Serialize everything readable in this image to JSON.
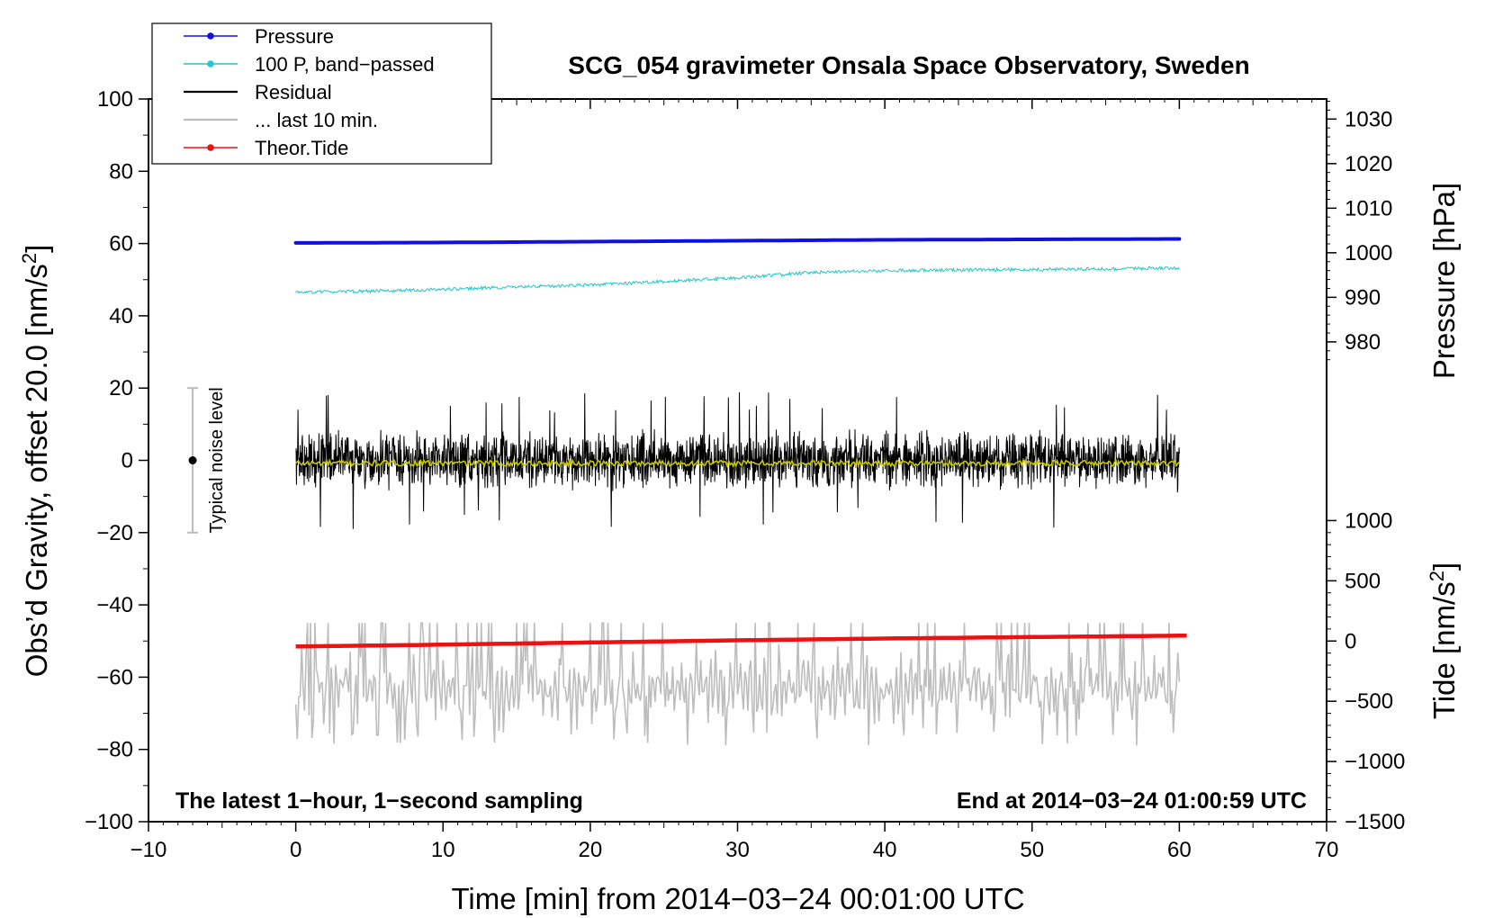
{
  "chart_data": {
    "type": "line",
    "title": "SCG_054 gravimeter Onsala Space Observatory, Sweden",
    "xlabel": "Time [min] from 2014−03−24 00:01:00 UTC",
    "ylabel_left": "Obs’d Gravity, offset 20.0 [nm/s²]",
    "ylabel_left_parts": {
      "main": "Obs’d Gravity, offset 20.0 [nm/s",
      "sup": "2",
      "end": "]"
    },
    "ylabel_pressure": "Pressure [hPa]",
    "ylabel_tide": "Tide [nm/s²]",
    "ylabel_tide_parts": {
      "main": "Tide [nm/s",
      "sup": "2",
      "end": "]"
    },
    "xlim": [
      -10,
      70
    ],
    "ylim": [
      -100,
      100
    ],
    "x_ticks": [
      -10,
      0,
      10,
      20,
      30,
      40,
      50,
      60,
      70
    ],
    "x_tick_labels": [
      "−10",
      "0",
      "10",
      "20",
      "30",
      "40",
      "50",
      "60",
      "70"
    ],
    "y_ticks": [
      -100,
      -80,
      -60,
      -40,
      -20,
      0,
      20,
      40,
      60,
      80,
      100
    ],
    "y_tick_labels": [
      "−100",
      "−80",
      "−60",
      "−40",
      "−20",
      "0",
      "20",
      "40",
      "60",
      "80",
      "100"
    ],
    "pressure_axis": {
      "ticks": [
        980,
        990,
        1000,
        1010,
        1020,
        1030
      ],
      "tick_labels": [
        "980",
        "990",
        "1000",
        "1010",
        "1020",
        "1030"
      ],
      "range_hPa": [
        974.5,
        1034.5
      ],
      "maps_to_left_y": [
        26,
        100
      ]
    },
    "tide_axis": {
      "ticks": [
        -1500,
        -1000,
        -500,
        0,
        500,
        1000
      ],
      "tick_labels": [
        "−1500",
        "−1000",
        "−500",
        "0",
        "500",
        "1000"
      ],
      "range": [
        -1500,
        1500
      ],
      "maps_to_left_y": [
        -100,
        0
      ]
    },
    "legend": {
      "position": "top-left",
      "entries": [
        {
          "label": "Pressure",
          "color": "#1010e0",
          "marker": true
        },
        {
          "label": "100 P, band−passed",
          "color": "#20c8c8",
          "marker": true
        },
        {
          "label": "Residual",
          "color": "#000000",
          "marker": false
        },
        {
          "label": "... last 10 min.",
          "color": "#bdbdbd",
          "marker": false
        },
        {
          "label": "Theor.Tide",
          "color": "#ee1111",
          "marker": true
        }
      ]
    },
    "annotations": {
      "left": "The latest 1−hour, 1−second sampling",
      "right": "End at 2014−03−24 01:00:59 UTC",
      "noise": "Typical noise level"
    },
    "noise_bar": {
      "x": -7,
      "y": 0,
      "ymin": -20,
      "ymax": 20
    },
    "series": [
      {
        "name": "Pressure",
        "color": "#1010e0",
        "unit": "hPa",
        "x": [
          0,
          10,
          20,
          30,
          40,
          50,
          60
        ],
        "values": [
          1002.2,
          1002.3,
          1002.5,
          1002.7,
          1002.9,
          1003.0,
          1003.1
        ]
      },
      {
        "name": "100 P, band−passed",
        "color": "#20c8c8",
        "unit": "nm/s² (left axis)",
        "x": [
          0,
          5,
          10,
          15,
          20,
          25,
          30,
          35,
          40,
          45,
          50,
          55,
          60
        ],
        "values": [
          46.5,
          46.8,
          47.3,
          48.0,
          48.5,
          49.5,
          50.5,
          52.0,
          52.5,
          52.7,
          52.8,
          53.0,
          53.2
        ]
      },
      {
        "name": "Residual",
        "color": "#000000",
        "unit": "nm/s²",
        "x": [
          0,
          60
        ],
        "center": 0,
        "amplitude": 9,
        "peaks": [
          19,
          -19
        ]
      },
      {
        "name": "Residual (smoothed)",
        "color": "#c8c800",
        "unit": "nm/s²",
        "x": [
          0,
          60
        ],
        "values": [
          -0.8,
          -0.8
        ]
      },
      {
        "name": "... last 10 min.",
        "color": "#bdbdbd",
        "unit": "nm/s²",
        "x": [
          0,
          60
        ],
        "center": -63,
        "range": [
          -79,
          -45
        ]
      },
      {
        "name": "Theor.Tide",
        "color": "#ee1111",
        "unit": "nm/s² (tide axis)",
        "x": [
          0,
          10,
          20,
          30,
          40,
          50,
          60.5
        ],
        "values": [
          -51.5,
          -51.0,
          -50.4,
          -49.8,
          -49.3,
          -48.9,
          -48.5
        ]
      }
    ]
  }
}
